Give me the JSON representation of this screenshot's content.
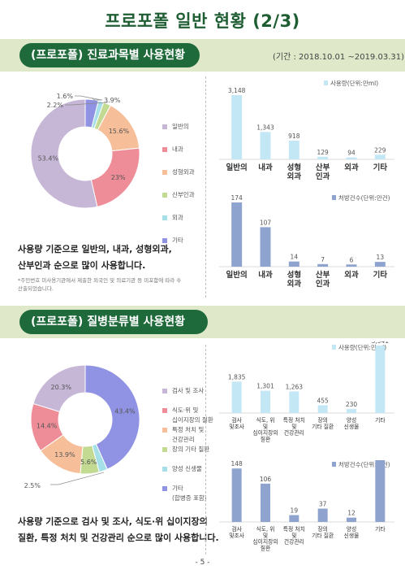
{
  "page_title": "프로포폴 일반 현황 (2/3)",
  "section1": {
    "title": "(프로포폴) 진료과목별 사용현황",
    "period": "(기간 : 2018.10.01 ~2019.03.31)",
    "summary_line1": "사용량 기준으로 일반의, 내과, 성형외과,",
    "summary_line2": "산부인과 순으로 많이 사용합니다.",
    "note_line1": "*주민번호 미사용기관에서 제출한 외국인 및 의료기관 등 미포함에 따라 수",
    "note_line2": "  산출되었습니다."
  },
  "section2": {
    "title": "(프로포폴) 질병분류별 사용현황",
    "summary_line1": "사용량 기준으로 검사 및 조사, 식도·위 십이지장의",
    "summary_line2": "질환, 특정 처치 및 건강관리 순으로 많이 사용합니다."
  },
  "page_number": "- 5 -",
  "chart_data": [
    {
      "type": "pie",
      "style": "donut",
      "categories": [
        "일반의",
        "내과",
        "성형외과",
        "산부인과",
        "외과",
        "기타"
      ],
      "values": [
        53.4,
        23.0,
        15.6,
        2.2,
        1.6,
        3.9
      ],
      "labels": [
        "53.4%",
        "23%",
        "15.6%",
        "2.2%",
        "1.6%",
        "3.9%"
      ],
      "colors": [
        "#c6b7d6",
        "#ee8c98",
        "#f7bf99",
        "#c2da92",
        "#a5dfe8",
        "#9092e3"
      ],
      "legend": "right"
    },
    {
      "type": "bar",
      "categories": [
        "일반의",
        "내과",
        "성형\n외과",
        "산부\n인과",
        "외과",
        "기타"
      ],
      "values": [
        3148,
        1343,
        918,
        129,
        94,
        229
      ],
      "labels": [
        "3,148",
        "1,343",
        "918",
        "129",
        "94",
        "229"
      ],
      "legend_label": "사용량(단위:만ml)",
      "color": "#c4e7f6",
      "ylim": [
        0,
        3148
      ]
    },
    {
      "type": "bar",
      "categories": [
        "일반의",
        "내과",
        "성형\n외과",
        "산부\n인과",
        "외과",
        "기타"
      ],
      "values": [
        174,
        107,
        14,
        7,
        6,
        13
      ],
      "labels": [
        "174",
        "107",
        "14",
        "7",
        "6",
        "13"
      ],
      "legend_label": "처방건수(단위:만건)",
      "color": "#8fa3cf",
      "ylim": [
        0,
        174
      ]
    },
    {
      "type": "pie",
      "style": "donut",
      "categories": [
        "검사 및 조사",
        "식도·위 및\n십이지장의 질환",
        "특정 처치 및\n건강관리",
        "장의 기타 질환",
        "양성 신생물",
        "기타\n(합병증 포함)"
      ],
      "values": [
        20.3,
        14.4,
        13.9,
        5.6,
        2.5,
        43.4
      ],
      "labels": [
        "20.3%",
        "14.4%",
        "13.9%",
        "5.6%",
        "2.5%",
        "43.4%"
      ],
      "colors": [
        "#c6b7d6",
        "#ee8c98",
        "#f7bf99",
        "#c2da92",
        "#a5dfe8",
        "#9092e3"
      ],
      "legend": "right"
    },
    {
      "type": "bar",
      "categories": [
        "검사\n및조사",
        "식도, 위\n및\n십이지장의\n질환",
        "특정 처치\n및\n건강관리",
        "장의\n기타 질환",
        "양성\n신생물",
        "기타"
      ],
      "values": [
        1835,
        1301,
        1263,
        455,
        230,
        3941
      ],
      "labels": [
        "1,835",
        "1,301",
        "1,263",
        "455",
        "230",
        "3,941"
      ],
      "legend_label": "사용량(단위:만ml)",
      "color": "#c4e7f6",
      "ylim": [
        0,
        3941
      ]
    },
    {
      "type": "bar",
      "categories": [
        "검사\n및조사",
        "식도, 위\n및\n십이지장의\n질환",
        "특정 처치\n및\n건강관리",
        "장의\n기타 질환",
        "양성\n신생물",
        "기타"
      ],
      "values": [
        148,
        106,
        19,
        37,
        12,
        171
      ],
      "labels": [
        "148",
        "106",
        "19",
        "37",
        "12",
        "171"
      ],
      "legend_label": "처방건수(단위:만건)",
      "color": "#8fa3cf",
      "ylim": [
        0,
        171
      ]
    }
  ]
}
